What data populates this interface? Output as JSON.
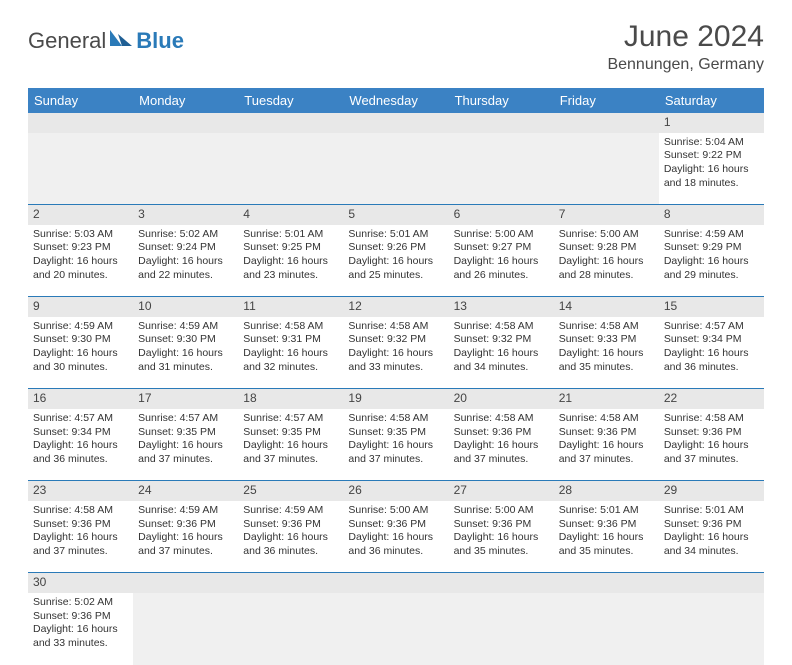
{
  "branding": {
    "logo_part1": "General",
    "logo_part2": "Blue",
    "logo_color_text": "#4a4a4a",
    "logo_color_accent": "#2a7ab8"
  },
  "title": {
    "month": "June 2024",
    "location": "Bennungen, Germany"
  },
  "style": {
    "header_bg": "#3b82c4",
    "header_text_color": "#ffffff",
    "cell_border_color": "#2a7ab8",
    "daynum_bg": "#e8e8e8",
    "body_font_size": 10.5,
    "header_font_size": 13,
    "title_font_size": 30,
    "location_font_size": 16
  },
  "day_headers": [
    "Sunday",
    "Monday",
    "Tuesday",
    "Wednesday",
    "Thursday",
    "Friday",
    "Saturday"
  ],
  "weeks": [
    [
      null,
      null,
      null,
      null,
      null,
      null,
      {
        "n": "1",
        "sr": "Sunrise: 5:04 AM",
        "ss": "Sunset: 9:22 PM",
        "d1": "Daylight: 16 hours",
        "d2": "and 18 minutes."
      }
    ],
    [
      {
        "n": "2",
        "sr": "Sunrise: 5:03 AM",
        "ss": "Sunset: 9:23 PM",
        "d1": "Daylight: 16 hours",
        "d2": "and 20 minutes."
      },
      {
        "n": "3",
        "sr": "Sunrise: 5:02 AM",
        "ss": "Sunset: 9:24 PM",
        "d1": "Daylight: 16 hours",
        "d2": "and 22 minutes."
      },
      {
        "n": "4",
        "sr": "Sunrise: 5:01 AM",
        "ss": "Sunset: 9:25 PM",
        "d1": "Daylight: 16 hours",
        "d2": "and 23 minutes."
      },
      {
        "n": "5",
        "sr": "Sunrise: 5:01 AM",
        "ss": "Sunset: 9:26 PM",
        "d1": "Daylight: 16 hours",
        "d2": "and 25 minutes."
      },
      {
        "n": "6",
        "sr": "Sunrise: 5:00 AM",
        "ss": "Sunset: 9:27 PM",
        "d1": "Daylight: 16 hours",
        "d2": "and 26 minutes."
      },
      {
        "n": "7",
        "sr": "Sunrise: 5:00 AM",
        "ss": "Sunset: 9:28 PM",
        "d1": "Daylight: 16 hours",
        "d2": "and 28 minutes."
      },
      {
        "n": "8",
        "sr": "Sunrise: 4:59 AM",
        "ss": "Sunset: 9:29 PM",
        "d1": "Daylight: 16 hours",
        "d2": "and 29 minutes."
      }
    ],
    [
      {
        "n": "9",
        "sr": "Sunrise: 4:59 AM",
        "ss": "Sunset: 9:30 PM",
        "d1": "Daylight: 16 hours",
        "d2": "and 30 minutes."
      },
      {
        "n": "10",
        "sr": "Sunrise: 4:59 AM",
        "ss": "Sunset: 9:30 PM",
        "d1": "Daylight: 16 hours",
        "d2": "and 31 minutes."
      },
      {
        "n": "11",
        "sr": "Sunrise: 4:58 AM",
        "ss": "Sunset: 9:31 PM",
        "d1": "Daylight: 16 hours",
        "d2": "and 32 minutes."
      },
      {
        "n": "12",
        "sr": "Sunrise: 4:58 AM",
        "ss": "Sunset: 9:32 PM",
        "d1": "Daylight: 16 hours",
        "d2": "and 33 minutes."
      },
      {
        "n": "13",
        "sr": "Sunrise: 4:58 AM",
        "ss": "Sunset: 9:32 PM",
        "d1": "Daylight: 16 hours",
        "d2": "and 34 minutes."
      },
      {
        "n": "14",
        "sr": "Sunrise: 4:58 AM",
        "ss": "Sunset: 9:33 PM",
        "d1": "Daylight: 16 hours",
        "d2": "and 35 minutes."
      },
      {
        "n": "15",
        "sr": "Sunrise: 4:57 AM",
        "ss": "Sunset: 9:34 PM",
        "d1": "Daylight: 16 hours",
        "d2": "and 36 minutes."
      }
    ],
    [
      {
        "n": "16",
        "sr": "Sunrise: 4:57 AM",
        "ss": "Sunset: 9:34 PM",
        "d1": "Daylight: 16 hours",
        "d2": "and 36 minutes."
      },
      {
        "n": "17",
        "sr": "Sunrise: 4:57 AM",
        "ss": "Sunset: 9:35 PM",
        "d1": "Daylight: 16 hours",
        "d2": "and 37 minutes."
      },
      {
        "n": "18",
        "sr": "Sunrise: 4:57 AM",
        "ss": "Sunset: 9:35 PM",
        "d1": "Daylight: 16 hours",
        "d2": "and 37 minutes."
      },
      {
        "n": "19",
        "sr": "Sunrise: 4:58 AM",
        "ss": "Sunset: 9:35 PM",
        "d1": "Daylight: 16 hours",
        "d2": "and 37 minutes."
      },
      {
        "n": "20",
        "sr": "Sunrise: 4:58 AM",
        "ss": "Sunset: 9:36 PM",
        "d1": "Daylight: 16 hours",
        "d2": "and 37 minutes."
      },
      {
        "n": "21",
        "sr": "Sunrise: 4:58 AM",
        "ss": "Sunset: 9:36 PM",
        "d1": "Daylight: 16 hours",
        "d2": "and 37 minutes."
      },
      {
        "n": "22",
        "sr": "Sunrise: 4:58 AM",
        "ss": "Sunset: 9:36 PM",
        "d1": "Daylight: 16 hours",
        "d2": "and 37 minutes."
      }
    ],
    [
      {
        "n": "23",
        "sr": "Sunrise: 4:58 AM",
        "ss": "Sunset: 9:36 PM",
        "d1": "Daylight: 16 hours",
        "d2": "and 37 minutes."
      },
      {
        "n": "24",
        "sr": "Sunrise: 4:59 AM",
        "ss": "Sunset: 9:36 PM",
        "d1": "Daylight: 16 hours",
        "d2": "and 37 minutes."
      },
      {
        "n": "25",
        "sr": "Sunrise: 4:59 AM",
        "ss": "Sunset: 9:36 PM",
        "d1": "Daylight: 16 hours",
        "d2": "and 36 minutes."
      },
      {
        "n": "26",
        "sr": "Sunrise: 5:00 AM",
        "ss": "Sunset: 9:36 PM",
        "d1": "Daylight: 16 hours",
        "d2": "and 36 minutes."
      },
      {
        "n": "27",
        "sr": "Sunrise: 5:00 AM",
        "ss": "Sunset: 9:36 PM",
        "d1": "Daylight: 16 hours",
        "d2": "and 35 minutes."
      },
      {
        "n": "28",
        "sr": "Sunrise: 5:01 AM",
        "ss": "Sunset: 9:36 PM",
        "d1": "Daylight: 16 hours",
        "d2": "and 35 minutes."
      },
      {
        "n": "29",
        "sr": "Sunrise: 5:01 AM",
        "ss": "Sunset: 9:36 PM",
        "d1": "Daylight: 16 hours",
        "d2": "and 34 minutes."
      }
    ],
    [
      {
        "n": "30",
        "sr": "Sunrise: 5:02 AM",
        "ss": "Sunset: 9:36 PM",
        "d1": "Daylight: 16 hours",
        "d2": "and 33 minutes."
      },
      null,
      null,
      null,
      null,
      null,
      null
    ]
  ]
}
